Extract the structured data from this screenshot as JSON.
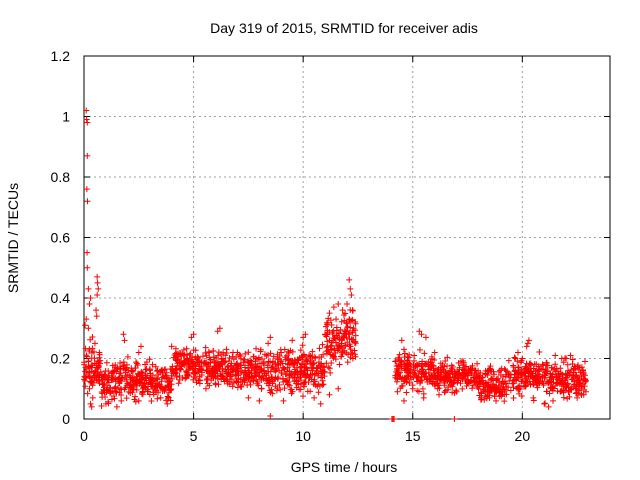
{
  "chart_data": {
    "type": "scatter",
    "title": "Day 319 of 2015, SRMTID for receiver adis",
    "xlabel": "GPS time / hours",
    "ylabel": "SRMTID / TECUs",
    "xlim": [
      0,
      24
    ],
    "ylim": [
      0,
      1.2
    ],
    "x_ticks": [
      0,
      5,
      10,
      15,
      20
    ],
    "x_tick_labels": [
      "0",
      "5",
      "10",
      "15",
      "20"
    ],
    "y_ticks": [
      0,
      0.2,
      0.4,
      0.6,
      0.8,
      1,
      1.2
    ],
    "y_tick_labels": [
      "0",
      "0.2",
      "0.4",
      "0.6",
      "0.8",
      "1",
      "1.2"
    ],
    "grid": true,
    "marker": "+",
    "series": [
      {
        "name": "SRMTID",
        "color": "#ff0000",
        "points": [
          [
            0.05,
            0.31
          ],
          [
            0.1,
            1.02
          ],
          [
            0.12,
            0.99
          ],
          [
            0.15,
            0.98
          ],
          [
            0.15,
            0.87
          ],
          [
            0.13,
            0.76
          ],
          [
            0.16,
            0.72
          ],
          [
            0.14,
            0.55
          ],
          [
            0.15,
            0.5
          ],
          [
            0.2,
            0.43
          ],
          [
            0.25,
            0.38
          ],
          [
            0.3,
            0.4
          ],
          [
            0.1,
            0.33
          ],
          [
            0.2,
            0.3
          ],
          [
            0.6,
            0.47
          ],
          [
            0.62,
            0.45
          ],
          [
            0.65,
            0.43
          ],
          [
            0.6,
            0.41
          ],
          [
            0.55,
            0.36
          ],
          [
            0.58,
            0.34
          ],
          [
            0.3,
            0.05
          ],
          [
            0.35,
            0.04
          ],
          [
            0.4,
            0.07
          ],
          [
            0.25,
            0.1
          ],
          [
            0.45,
            0.12
          ],
          [
            0.5,
            0.25
          ],
          [
            0.7,
            0.22
          ],
          [
            1.0,
            0.05
          ],
          [
            1.5,
            0.04
          ],
          [
            1.7,
            0.06
          ],
          [
            2.5,
            0.06
          ],
          [
            3.8,
            0.05
          ],
          [
            3.5,
            0.07
          ],
          [
            1.8,
            0.28
          ],
          [
            1.85,
            0.26
          ],
          [
            2.5,
            0.22
          ],
          [
            2.6,
            0.24
          ],
          [
            4.9,
            0.27
          ],
          [
            5.0,
            0.28
          ],
          [
            6.1,
            0.29
          ],
          [
            6.2,
            0.3
          ],
          [
            4.0,
            0.24
          ],
          [
            6.5,
            0.23
          ],
          [
            7.0,
            0.22
          ],
          [
            8.4,
            0.25
          ],
          [
            8.5,
            0.27
          ],
          [
            9.0,
            0.22
          ],
          [
            9.5,
            0.26
          ],
          [
            10.1,
            0.28
          ],
          [
            10.0,
            0.27
          ],
          [
            7.5,
            0.07
          ],
          [
            8.0,
            0.06
          ],
          [
            8.5,
            0.01
          ],
          [
            9.1,
            0.06
          ],
          [
            10.5,
            0.07
          ],
          [
            10.8,
            0.05
          ],
          [
            11.2,
            0.08
          ],
          [
            11.6,
            0.1
          ],
          [
            11.2,
            0.35
          ],
          [
            11.4,
            0.37
          ],
          [
            11.6,
            0.38
          ],
          [
            11.8,
            0.36
          ],
          [
            11.5,
            0.33
          ],
          [
            11.0,
            0.28
          ],
          [
            12.1,
            0.46
          ],
          [
            12.15,
            0.43
          ],
          [
            12.2,
            0.41
          ],
          [
            12.0,
            0.38
          ],
          [
            12.25,
            0.36
          ],
          [
            12.1,
            0.33
          ],
          [
            12.3,
            0.3
          ],
          [
            14.05,
            0.0
          ],
          [
            14.1,
            0.0
          ],
          [
            14.15,
            0.0
          ],
          [
            16.9,
            0.0
          ],
          [
            14.2,
            0.19
          ],
          [
            14.5,
            0.26
          ],
          [
            14.6,
            0.23
          ],
          [
            15.3,
            0.29
          ],
          [
            15.4,
            0.28
          ],
          [
            15.6,
            0.27
          ],
          [
            16.0,
            0.22
          ],
          [
            14.3,
            0.09
          ],
          [
            14.6,
            0.06
          ],
          [
            15.0,
            0.1
          ],
          [
            15.5,
            0.07
          ],
          [
            16.2,
            0.08
          ],
          [
            17.0,
            0.09
          ],
          [
            17.5,
            0.12
          ],
          [
            18.0,
            0.1
          ],
          [
            18.5,
            0.07
          ],
          [
            18.8,
            0.06
          ],
          [
            19.0,
            0.09
          ],
          [
            19.8,
            0.22
          ],
          [
            20.0,
            0.2
          ],
          [
            20.2,
            0.24
          ],
          [
            20.3,
            0.26
          ],
          [
            20.25,
            0.25
          ],
          [
            21.5,
            0.21
          ],
          [
            21.8,
            0.2
          ],
          [
            22.0,
            0.2
          ],
          [
            22.2,
            0.21
          ],
          [
            20.5,
            0.07
          ],
          [
            21.0,
            0.05
          ],
          [
            21.2,
            0.04
          ],
          [
            21.4,
            0.06
          ],
          [
            22.5,
            0.07
          ],
          [
            22.8,
            0.08
          ],
          [
            22.9,
            0.09
          ]
        ]
      }
    ]
  }
}
